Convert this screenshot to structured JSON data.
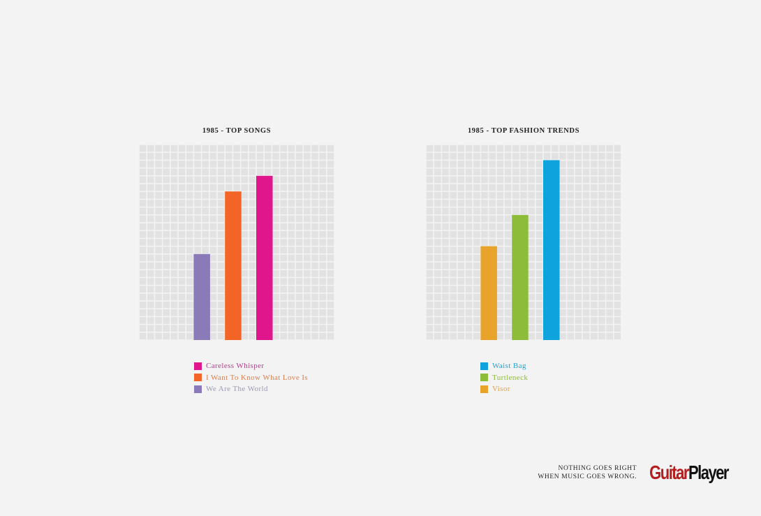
{
  "chart_data": [
    {
      "type": "bar",
      "title": "1985 - TOP SONGS",
      "categories": [
        "We Are The World",
        "I Want To Know What Love Is",
        "Careless Whisper"
      ],
      "values": [
        11,
        19,
        21
      ],
      "colors": [
        "#8a7ab8",
        "#f36526",
        "#e0168c"
      ],
      "ylim": [
        0,
        25
      ],
      "grid": true,
      "legend": {
        "placement": "below",
        "items": [
          {
            "label": "Careless Whisper",
            "color": "#e0168c",
            "text_color": "#b0408a"
          },
          {
            "label": "I Want To Know What Love Is",
            "color": "#f36526",
            "text_color": "#d88050"
          },
          {
            "label": "We Are The World",
            "color": "#8a7ab8",
            "text_color": "#9a9ab0"
          }
        ]
      }
    },
    {
      "type": "bar",
      "title": "1985 - TOP FASHION TRENDS",
      "categories": [
        "Visor",
        "Turtleneck",
        "Waist Bag"
      ],
      "values": [
        12,
        16,
        23
      ],
      "colors": [
        "#e8a32a",
        "#8dbb3a",
        "#0fa3dd"
      ],
      "ylim": [
        0,
        25
      ],
      "grid": true,
      "legend": {
        "placement": "below",
        "items": [
          {
            "label": "Waist Bag",
            "color": "#0fa3dd",
            "text_color": "#2a9fcc"
          },
          {
            "label": "Turtleneck",
            "color": "#8dbb3a",
            "text_color": "#8dbb3a"
          },
          {
            "label": "Visor",
            "color": "#e8a32a",
            "text_color": "#e0a040"
          }
        ]
      }
    }
  ],
  "footer": {
    "tagline_line1": "NOTHING GOES RIGHT",
    "tagline_line2": "WHEN MUSIC GOES WRONG.",
    "logo_part1": "Guitar",
    "logo_part2": "Player"
  }
}
